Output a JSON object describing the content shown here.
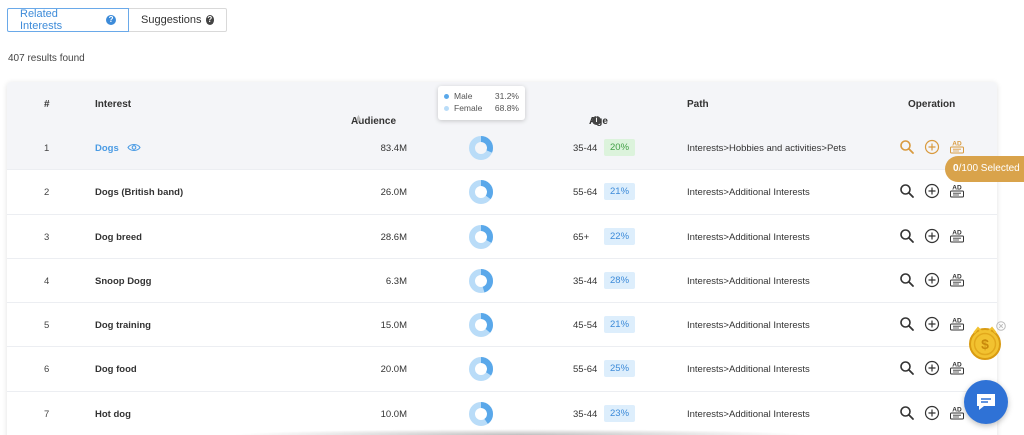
{
  "tabs": [
    {
      "label": "Related Interests",
      "active": true
    },
    {
      "label": "Suggestions",
      "active": false
    }
  ],
  "results_text": "407 results found",
  "table": {
    "headers": {
      "num": "#",
      "interest": "Interest",
      "audience": "Audience",
      "age": "Age",
      "path": "Path",
      "operation": "Operation"
    },
    "rows": [
      {
        "num": "1",
        "interest": "Dogs",
        "audience": "83.4M",
        "age_range": "35-44",
        "age_pct": "20%",
        "path": "Interests>Hobbies and activities>Pets",
        "male_share": 0.312
      },
      {
        "num": "2",
        "interest": "Dogs (British band)",
        "audience": "26.0M",
        "age_range": "55-64",
        "age_pct": "21%",
        "path": "Interests>Additional Interests",
        "male_share": 0.35
      },
      {
        "num": "3",
        "interest": "Dog breed",
        "audience": "28.6M",
        "age_range": "65+",
        "age_pct": "22%",
        "path": "Interests>Additional Interests",
        "male_share": 0.33
      },
      {
        "num": "4",
        "interest": "Snoop Dogg",
        "audience": "6.3M",
        "age_range": "35-44",
        "age_pct": "28%",
        "path": "Interests>Additional Interests",
        "male_share": 0.45
      },
      {
        "num": "5",
        "interest": "Dog training",
        "audience": "15.0M",
        "age_range": "45-54",
        "age_pct": "21%",
        "path": "Interests>Additional Interests",
        "male_share": 0.36
      },
      {
        "num": "6",
        "interest": "Dog food",
        "audience": "20.0M",
        "age_range": "55-64",
        "age_pct": "25%",
        "path": "Interests>Additional Interests",
        "male_share": 0.34
      },
      {
        "num": "7",
        "interest": "Hot dog",
        "audience": "10.0M",
        "age_range": "35-44",
        "age_pct": "23%",
        "path": "Interests>Additional Interests",
        "male_share": 0.4
      }
    ]
  },
  "tooltip": {
    "male_label": "Male",
    "male_value": "31.2%",
    "female_label": "Female",
    "female_value": "68.8%"
  },
  "selected": {
    "count": "0",
    "rest": "/100 Selected"
  },
  "operation_icons": [
    "search-icon",
    "add-circle-icon",
    "ad-icon"
  ],
  "colors": {
    "accent": "#3d8bd9",
    "male": "#5aa8ea",
    "female": "#b9dcf8",
    "gold": "#d9a34b",
    "chat": "#2f72d6"
  }
}
